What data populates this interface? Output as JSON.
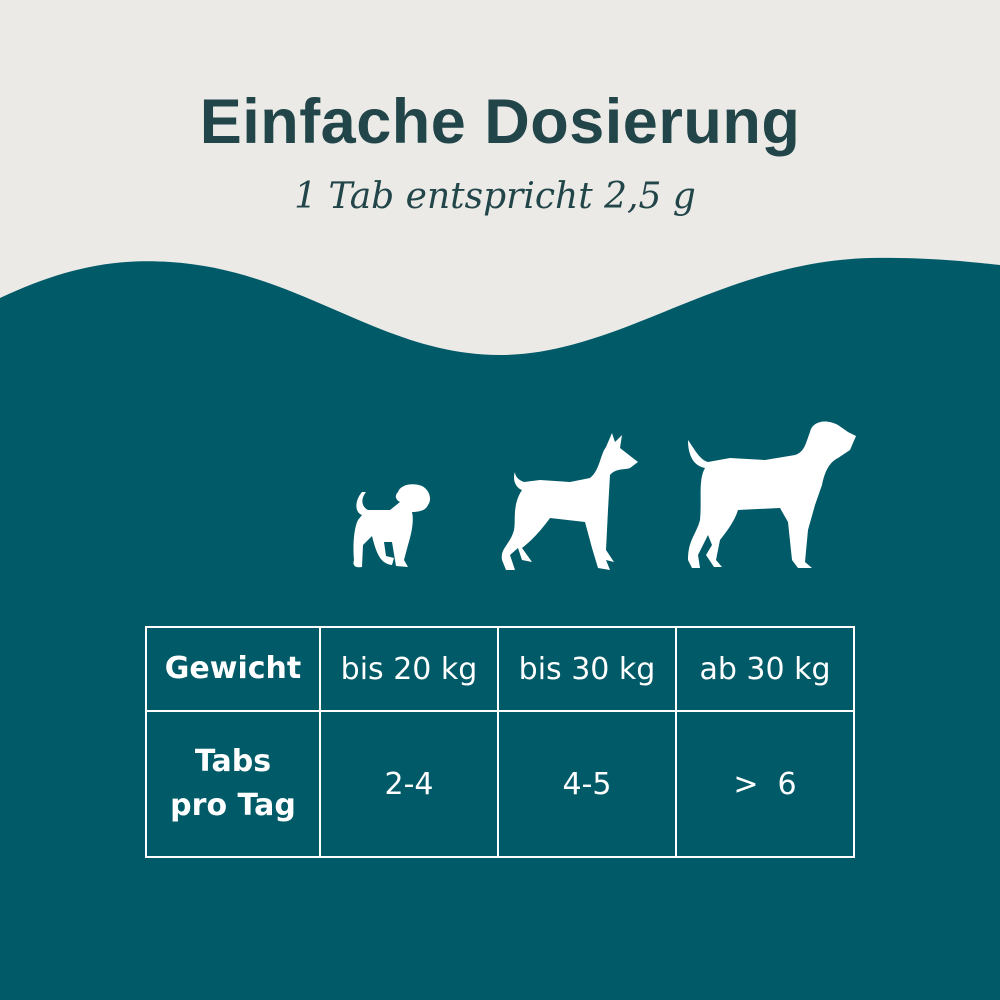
{
  "colors": {
    "background": "#ebeae7",
    "teal": "#005a67",
    "title": "#214548",
    "white": "#ffffff"
  },
  "header": {
    "title": "Einfache Dosierung",
    "subtitle": "1 Tab entspricht 2,5 g"
  },
  "icons": [
    "puppy-icon",
    "medium-dog-icon",
    "large-dog-icon"
  ],
  "table": {
    "header_label": "Gewicht",
    "weights": [
      "bis 20 kg",
      "bis 30 kg",
      "ab 30 kg"
    ],
    "row_label_line1": "Tabs",
    "row_label_line2": "pro Tag",
    "tabs": [
      "2-4",
      "4-5",
      ">  6"
    ]
  }
}
